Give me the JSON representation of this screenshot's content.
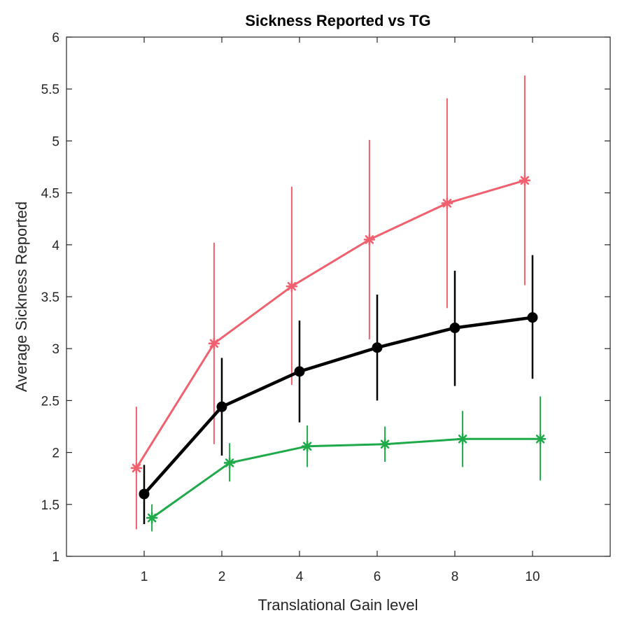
{
  "chart_data": {
    "type": "line",
    "title": "Sickness Reported vs TG",
    "xlabel": "Translational Gain level",
    "ylabel": "Average Sickness Reported",
    "categories": [
      "1",
      "2",
      "4",
      "6",
      "8",
      "10"
    ],
    "ylim": [
      1,
      6
    ],
    "yticks": [
      "1",
      "1.5",
      "2",
      "2.5",
      "3",
      "3.5",
      "4",
      "4.5",
      "5",
      "5.5",
      "6"
    ],
    "grid": false,
    "legend": "none",
    "series": [
      {
        "color": "#f0606e",
        "marker": "asterisk",
        "offset": -0.1,
        "values": [
          1.85,
          3.05,
          3.6,
          4.05,
          4.4,
          4.62
        ],
        "err_low": [
          1.26,
          2.08,
          2.65,
          3.09,
          3.39,
          3.61
        ],
        "err_high": [
          2.44,
          4.02,
          4.56,
          5.01,
          5.41,
          5.63
        ]
      },
      {
        "color": "#000000",
        "marker": "circle",
        "offset": 0,
        "values": [
          1.6,
          2.44,
          2.78,
          3.01,
          3.2,
          3.3
        ],
        "err_low": [
          1.31,
          1.97,
          2.29,
          2.5,
          2.64,
          2.71
        ],
        "err_high": [
          1.88,
          2.91,
          3.27,
          3.52,
          3.75,
          3.9
        ]
      },
      {
        "color": "#1faa4a",
        "marker": "asterisk",
        "offset": 0.1,
        "values": [
          1.37,
          1.9,
          2.06,
          2.08,
          2.13,
          2.13
        ],
        "err_low": [
          1.24,
          1.72,
          1.86,
          1.91,
          1.86,
          1.73
        ],
        "err_high": [
          1.5,
          2.09,
          2.26,
          2.25,
          2.4,
          2.54
        ]
      }
    ]
  }
}
